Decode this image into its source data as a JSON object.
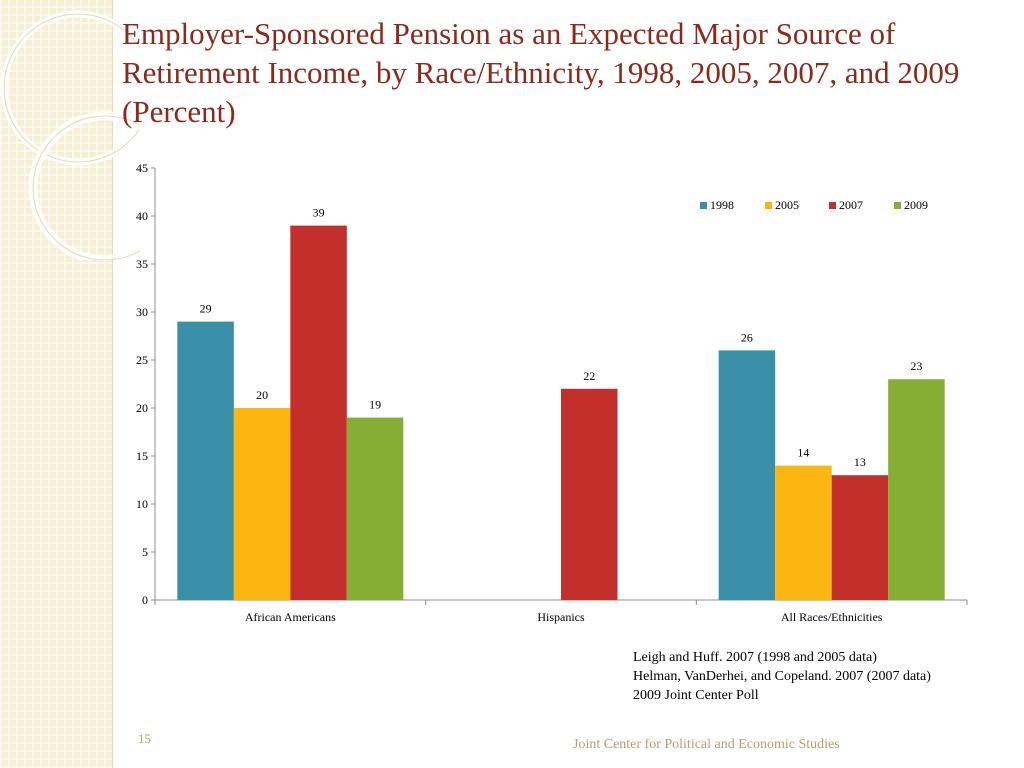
{
  "slide": {
    "title": "Employer-Sponsored Pension as an Expected Major Source of Retirement Income, by Race/Ethnicity, 1998, 2005, 2007, and 2009 (Percent)",
    "sources": [
      "Leigh and Huff. 2007 (1998 and 2005 data)",
      "Helman, VanDerhei, and Copeland. 2007 (2007 data)",
      "2009 Joint Center Poll"
    ],
    "page_number": "15",
    "footer": "Joint Center for Political and Economic Studies"
  },
  "chart_data": {
    "type": "bar",
    "categories": [
      "African Americans",
      "Hispanics",
      "All Races/Ethnicities"
    ],
    "series": [
      {
        "name": "1998",
        "color": "#3a8fa8",
        "values": [
          29,
          null,
          26
        ]
      },
      {
        "name": "2005",
        "color": "#fbb612",
        "values": [
          20,
          null,
          14
        ]
      },
      {
        "name": "2007",
        "color": "#c3302c",
        "values": [
          39,
          22,
          13
        ]
      },
      {
        "name": "2009",
        "color": "#86ad34",
        "values": [
          19,
          null,
          23
        ]
      }
    ],
    "ylim": [
      0,
      45
    ],
    "yticks": [
      0,
      5,
      10,
      15,
      20,
      25,
      30,
      35,
      40,
      45
    ],
    "legend_position": "top-right",
    "grid": false,
    "data_labels": true
  }
}
